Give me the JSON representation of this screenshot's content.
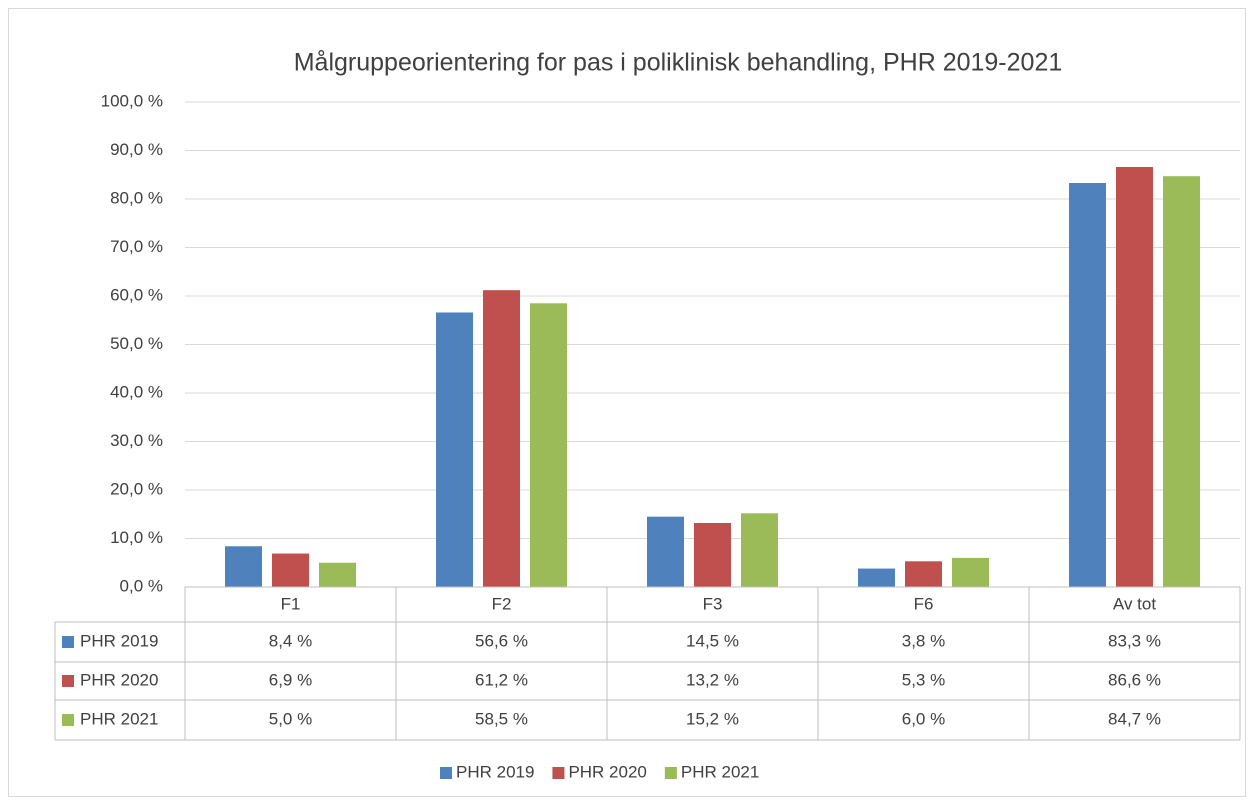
{
  "chart_data": {
    "type": "bar",
    "title": "Målgruppeorientering for pas i poliklinisk behandling, PHR 2019-2021",
    "categories": [
      "F1",
      "F2",
      "F3",
      "F6",
      "Av tot"
    ],
    "series": [
      {
        "name": "PHR 2019",
        "color": "#4f81bd",
        "values": [
          8.4,
          56.6,
          14.5,
          3.8,
          83.3
        ],
        "value_labels": [
          "8,4 %",
          "56,6 %",
          "14,5 %",
          "3,8 %",
          "83,3 %"
        ]
      },
      {
        "name": "PHR 2020",
        "color": "#c0504d",
        "values": [
          6.9,
          61.2,
          13.2,
          5.3,
          86.6
        ],
        "value_labels": [
          "6,9 %",
          "61,2 %",
          "13,2 %",
          "5,3 %",
          "86,6 %"
        ]
      },
      {
        "name": "PHR 2021",
        "color": "#9bbb59",
        "values": [
          5.0,
          58.5,
          15.2,
          6.0,
          84.7
        ],
        "value_labels": [
          "5,0 %",
          "58,5 %",
          "15,2 %",
          "6,0 %",
          "84,7 %"
        ]
      }
    ],
    "ylim": [
      0,
      100
    ],
    "yticks": [
      {
        "value": 0,
        "label": "0,0 %"
      },
      {
        "value": 10,
        "label": "10,0 %"
      },
      {
        "value": 20,
        "label": "20,0 %"
      },
      {
        "value": 30,
        "label": "30,0 %"
      },
      {
        "value": 40,
        "label": "40,0 %"
      },
      {
        "value": 50,
        "label": "50,0 %"
      },
      {
        "value": 60,
        "label": "60,0 %"
      },
      {
        "value": 70,
        "label": "70,0 %"
      },
      {
        "value": 80,
        "label": "80,0 %"
      },
      {
        "value": 90,
        "label": "90,0 %"
      },
      {
        "value": 100,
        "label": "100,0 %"
      }
    ],
    "grid": true,
    "legend": "bottom",
    "data_table": true
  }
}
